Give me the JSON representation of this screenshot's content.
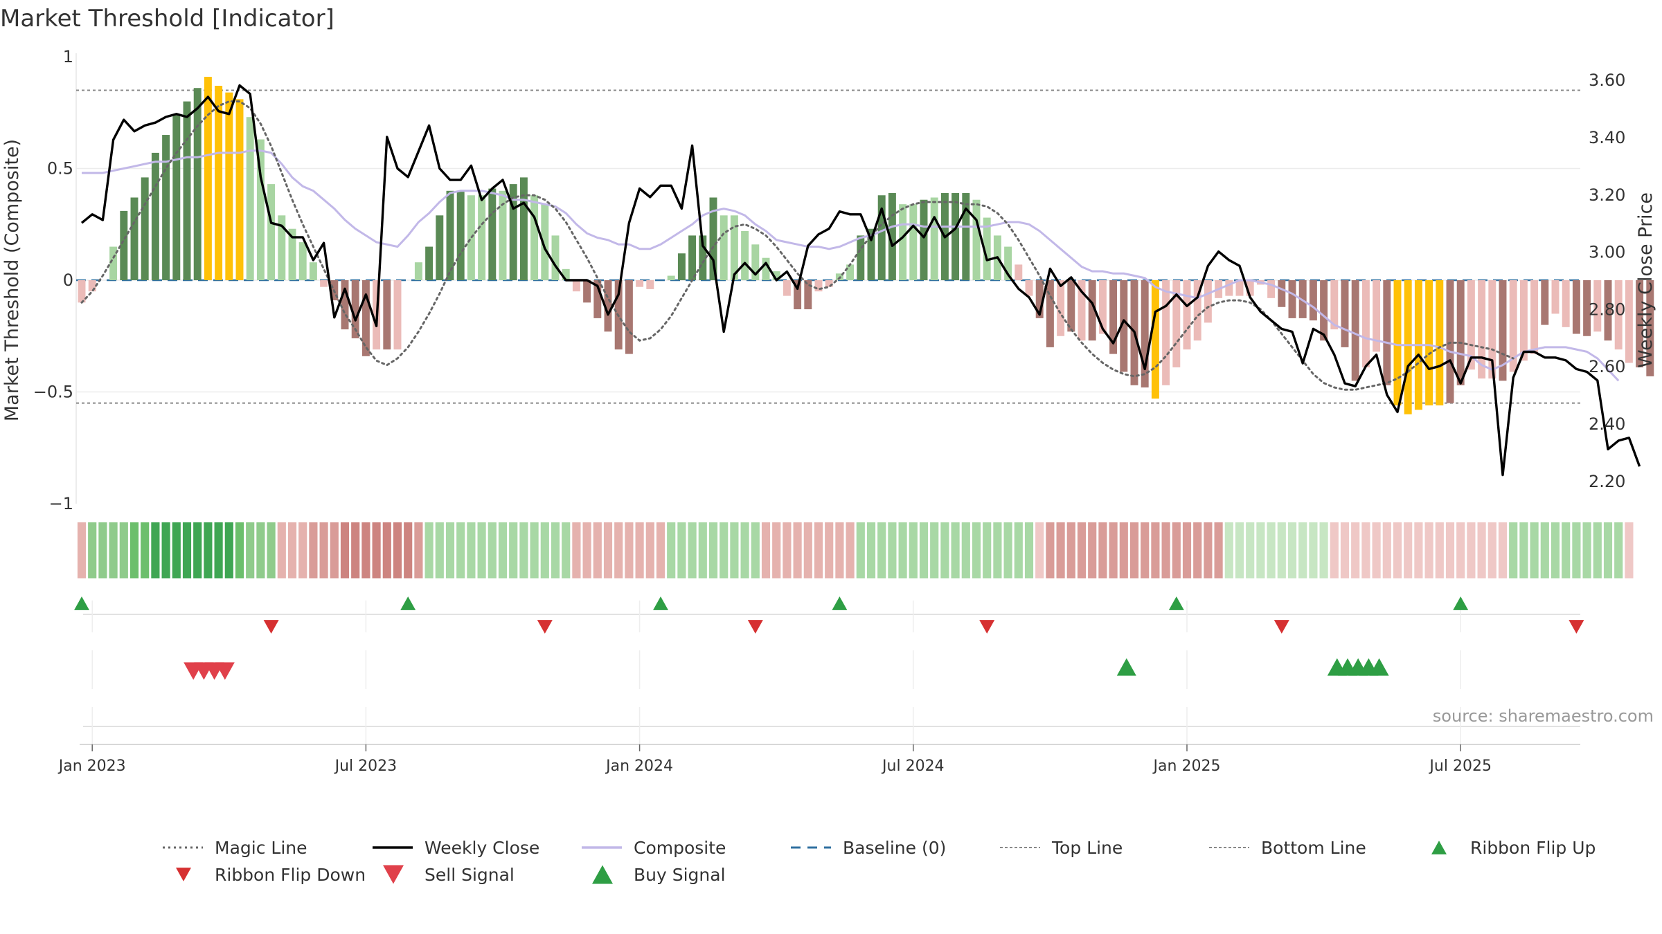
{
  "title": "Market Threshold [Indicator]",
  "source": "source: sharemaestro.com",
  "chart_data": {
    "type": "bar",
    "ylabel_left": "Market Threshold (Composite)",
    "ylabel_right": "Weekly Close Price",
    "ylim_left": [
      -1,
      1
    ],
    "ylim_right": [
      2.12,
      3.68
    ],
    "left_ticks": [
      {
        "v": 1,
        "label": "1"
      },
      {
        "v": 0.5,
        "label": "0.5"
      },
      {
        "v": 0,
        "label": "0"
      },
      {
        "v": -0.5,
        "label": "−0.5"
      },
      {
        "v": -1,
        "label": "−1"
      }
    ],
    "right_ticks": [
      {
        "v": 3.6,
        "label": "3.60"
      },
      {
        "v": 3.4,
        "label": "3.40"
      },
      {
        "v": 3.2,
        "label": "3.20"
      },
      {
        "v": 3.0,
        "label": "3.00"
      },
      {
        "v": 2.8,
        "label": "2.80"
      },
      {
        "v": 2.6,
        "label": "2.60"
      },
      {
        "v": 2.4,
        "label": "2.40"
      },
      {
        "v": 2.2,
        "label": "2.20"
      }
    ],
    "x_ticks": [
      {
        "week": 1,
        "label": "Jan 2023"
      },
      {
        "week": 27,
        "label": "Jul 2023"
      },
      {
        "week": 53,
        "label": "Jan 2024"
      },
      {
        "week": 79,
        "label": "Jul 2024"
      },
      {
        "week": 105,
        "label": "Jan 2025"
      },
      {
        "week": 131,
        "label": "Jul 2025"
      }
    ],
    "top_line": 0.85,
    "bottom_line": -0.55,
    "baseline": 0,
    "bars": [
      -0.1,
      -0.05,
      0,
      0.15,
      0.31,
      0.37,
      0.46,
      0.57,
      0.65,
      0.74,
      0.8,
      0.86,
      0.91,
      0.87,
      0.84,
      0.81,
      0.73,
      0.63,
      0.43,
      0.29,
      0.23,
      0.17,
      0.08,
      -0.03,
      -0.09,
      -0.22,
      -0.26,
      -0.34,
      -0.31,
      -0.31,
      -0.31,
      0,
      0.08,
      0.15,
      0.29,
      0.4,
      0.4,
      0.38,
      0.38,
      0.41,
      0.4,
      0.43,
      0.46,
      0.38,
      0.34,
      0.2,
      0.05,
      -0.05,
      -0.1,
      -0.17,
      -0.23,
      -0.31,
      -0.33,
      -0.03,
      -0.04,
      0,
      0.02,
      0.12,
      0.2,
      0.2,
      0.37,
      0.29,
      0.29,
      0.22,
      0.16,
      0.1,
      0.04,
      -0.07,
      -0.13,
      -0.13,
      -0.05,
      -0.03,
      0.03,
      0.07,
      0.2,
      0.23,
      0.38,
      0.39,
      0.34,
      0.34,
      0.36,
      0.37,
      0.39,
      0.39,
      0.39,
      0.36,
      0.28,
      0.2,
      0.15,
      0.07,
      -0.07,
      -0.17,
      -0.3,
      -0.25,
      -0.23,
      -0.27,
      -0.27,
      -0.24,
      -0.33,
      -0.41,
      -0.47,
      -0.48,
      -0.53,
      -0.47,
      -0.39,
      -0.31,
      -0.27,
      -0.19,
      -0.08,
      -0.07,
      -0.07,
      -0.07,
      -0.02,
      -0.08,
      -0.12,
      -0.17,
      -0.17,
      -0.18,
      -0.27,
      -0.22,
      -0.3,
      -0.45,
      -0.39,
      -0.32,
      -0.47,
      -0.56,
      -0.6,
      -0.58,
      -0.56,
      -0.56,
      -0.55,
      -0.47,
      -0.4,
      -0.44,
      -0.44,
      -0.45,
      -0.41,
      -0.36,
      -0.33,
      -0.2,
      -0.15,
      -0.21,
      -0.24,
      -0.25,
      -0.23,
      -0.27,
      -0.31,
      -0.37,
      -0.39,
      -0.43
    ],
    "bar_categories": [
      "pink",
      "pink",
      "pink",
      "lightgreen",
      "darkgreen",
      "darkgreen",
      "darkgreen",
      "darkgreen",
      "darkgreen",
      "darkgreen",
      "darkgreen",
      "darkgreen",
      "gold",
      "gold",
      "gold",
      "gold",
      "lightgreen",
      "lightgreen",
      "lightgreen",
      "lightgreen",
      "lightgreen",
      "lightgreen",
      "lightgreen",
      "pink",
      "darkred",
      "darkred",
      "darkred",
      "darkred",
      "pink",
      "darkred",
      "pink",
      "pink",
      "lightgreen",
      "darkgreen",
      "darkgreen",
      "darkgreen",
      "darkgreen",
      "lightgreen",
      "lightgreen",
      "darkgreen",
      "lightgreen",
      "darkgreen",
      "darkgreen",
      "lightgreen",
      "lightgreen",
      "lightgreen",
      "lightgreen",
      "pink",
      "darkred",
      "darkred",
      "darkred",
      "darkred",
      "darkred",
      "pink",
      "pink",
      "pink",
      "lightgreen",
      "darkgreen",
      "darkgreen",
      "darkgreen",
      "darkgreen",
      "lightgreen",
      "lightgreen",
      "lightgreen",
      "lightgreen",
      "lightgreen",
      "lightgreen",
      "pink",
      "darkred",
      "darkred",
      "pink",
      "pink",
      "lightgreen",
      "lightgreen",
      "darkgreen",
      "darkgreen",
      "darkgreen",
      "darkgreen",
      "lightgreen",
      "lightgreen",
      "darkgreen",
      "lightgreen",
      "darkgreen",
      "darkgreen",
      "darkgreen",
      "lightgreen",
      "lightgreen",
      "lightgreen",
      "lightgreen",
      "pink",
      "pink",
      "darkred",
      "darkred",
      "pink",
      "darkred",
      "pink",
      "darkred",
      "pink",
      "darkred",
      "darkred",
      "darkred",
      "darkred",
      "gold",
      "pink",
      "pink",
      "pink",
      "pink",
      "pink",
      "pink",
      "pink",
      "pink",
      "pink",
      "pink",
      "pink",
      "darkred",
      "darkred",
      "darkred",
      "darkred",
      "darkred",
      "pink",
      "darkred",
      "darkred",
      "pink",
      "pink",
      "darkred",
      "gold",
      "gold",
      "gold",
      "gold",
      "gold",
      "darkred",
      "darkred",
      "pink",
      "pink",
      "pink",
      "darkred",
      "pink",
      "pink",
      "pink",
      "darkred",
      "pink",
      "pink",
      "darkred",
      "darkred",
      "pink",
      "darkred",
      "pink",
      "pink",
      "darkred",
      "darkred"
    ],
    "magic_line": [
      -0.1,
      -0.05,
      0.02,
      0.1,
      0.18,
      0.26,
      0.34,
      0.42,
      0.5,
      0.57,
      0.63,
      0.69,
      0.74,
      0.78,
      0.8,
      0.8,
      0.77,
      0.7,
      0.6,
      0.48,
      0.36,
      0.25,
      0.15,
      0.05,
      -0.05,
      -0.15,
      -0.22,
      -0.3,
      -0.36,
      -0.38,
      -0.35,
      -0.3,
      -0.23,
      -0.15,
      -0.06,
      0.04,
      0.12,
      0.19,
      0.25,
      0.3,
      0.34,
      0.37,
      0.38,
      0.38,
      0.36,
      0.32,
      0.26,
      0.18,
      0.1,
      0.01,
      -0.08,
      -0.16,
      -0.23,
      -0.27,
      -0.26,
      -0.22,
      -0.16,
      -0.08,
      0,
      0.08,
      0.15,
      0.21,
      0.24,
      0.25,
      0.23,
      0.2,
      0.15,
      0.09,
      0.03,
      -0.02,
      -0.04,
      -0.03,
      0.01,
      0.07,
      0.14,
      0.2,
      0.25,
      0.29,
      0.32,
      0.34,
      0.35,
      0.35,
      0.35,
      0.35,
      0.34,
      0.34,
      0.33,
      0.3,
      0.25,
      0.18,
      0.1,
      0.02,
      -0.07,
      -0.15,
      -0.22,
      -0.28,
      -0.33,
      -0.37,
      -0.4,
      -0.42,
      -0.43,
      -0.42,
      -0.39,
      -0.34,
      -0.28,
      -0.22,
      -0.16,
      -0.12,
      -0.1,
      -0.09,
      -0.09,
      -0.1,
      -0.13,
      -0.18,
      -0.24,
      -0.3,
      -0.36,
      -0.42,
      -0.46,
      -0.48,
      -0.49,
      -0.49,
      -0.48,
      -0.47,
      -0.46,
      -0.44,
      -0.41,
      -0.37,
      -0.33,
      -0.3,
      -0.28,
      -0.28,
      -0.29,
      -0.3,
      -0.31,
      -0.33,
      -0.35
    ],
    "composite": [
      0.48,
      0.48,
      0.48,
      0.49,
      0.5,
      0.51,
      0.52,
      0.53,
      0.53,
      0.54,
      0.55,
      0.55,
      0.56,
      0.57,
      0.57,
      0.57,
      0.58,
      0.58,
      0.57,
      0.52,
      0.46,
      0.42,
      0.4,
      0.36,
      0.32,
      0.27,
      0.23,
      0.2,
      0.17,
      0.16,
      0.15,
      0.2,
      0.26,
      0.3,
      0.35,
      0.39,
      0.4,
      0.4,
      0.4,
      0.39,
      0.38,
      0.36,
      0.36,
      0.35,
      0.34,
      0.33,
      0.3,
      0.25,
      0.21,
      0.19,
      0.18,
      0.16,
      0.16,
      0.14,
      0.14,
      0.16,
      0.19,
      0.22,
      0.25,
      0.29,
      0.31,
      0.32,
      0.31,
      0.29,
      0.25,
      0.22,
      0.18,
      0.17,
      0.16,
      0.15,
      0.15,
      0.14,
      0.15,
      0.17,
      0.19,
      0.2,
      0.22,
      0.24,
      0.25,
      0.25,
      0.24,
      0.24,
      0.24,
      0.24,
      0.24,
      0.24,
      0.24,
      0.25,
      0.26,
      0.26,
      0.25,
      0.22,
      0.18,
      0.14,
      0.1,
      0.06,
      0.04,
      0.04,
      0.03,
      0.03,
      0.02,
      0.01,
      -0.03,
      -0.05,
      -0.06,
      -0.07,
      -0.08,
      -0.06,
      -0.04,
      -0.02,
      0,
      0,
      -0.01,
      -0.02,
      -0.04,
      -0.06,
      -0.09,
      -0.12,
      -0.16,
      -0.2,
      -0.22,
      -0.24,
      -0.26,
      -0.27,
      -0.28,
      -0.29,
      -0.29,
      -0.29,
      -0.29,
      -0.3,
      -0.32,
      -0.33,
      -0.34,
      -0.38,
      -0.4,
      -0.38,
      -0.35,
      -0.32,
      -0.31,
      -0.3,
      -0.3,
      -0.3,
      -0.31,
      -0.32,
      -0.35,
      -0.4,
      -0.45
    ],
    "weekly_close": [
      3.1,
      3.13,
      3.11,
      3.39,
      3.46,
      3.42,
      3.44,
      3.45,
      3.47,
      3.48,
      3.47,
      3.5,
      3.54,
      3.49,
      3.48,
      3.58,
      3.55,
      3.26,
      3.1,
      3.09,
      3.05,
      3.05,
      2.97,
      3.03,
      2.77,
      2.87,
      2.76,
      2.85,
      2.74,
      3.4,
      3.29,
      3.26,
      3.35,
      3.44,
      3.29,
      3.25,
      3.25,
      3.3,
      3.18,
      3.22,
      3.25,
      3.15,
      3.17,
      3.12,
      3.01,
      2.95,
      2.9,
      2.9,
      2.9,
      2.88,
      2.78,
      2.85,
      3.1,
      3.22,
      3.19,
      3.23,
      3.23,
      3.15,
      3.37,
      3.02,
      2.97,
      2.72,
      2.92,
      2.96,
      2.92,
      2.96,
      2.9,
      2.93,
      2.87,
      3.02,
      3.06,
      3.08,
      3.14,
      3.13,
      3.13,
      3.04,
      3.15,
      3.02,
      3.05,
      3.09,
      3.05,
      3.12,
      3.05,
      3.08,
      3.15,
      3.11,
      2.97,
      2.98,
      2.92,
      2.87,
      2.84,
      2.78,
      2.94,
      2.88,
      2.91,
      2.86,
      2.82,
      2.73,
      2.68,
      2.76,
      2.72,
      2.59,
      2.79,
      2.81,
      2.85,
      2.81,
      2.84,
      2.95,
      3.0,
      2.97,
      2.95,
      2.84,
      2.79,
      2.76,
      2.73,
      2.72,
      2.61,
      2.73,
      2.71,
      2.64,
      2.54,
      2.53,
      2.6,
      2.64,
      2.5,
      2.44,
      2.6,
      2.64,
      2.59,
      2.6,
      2.62,
      2.54,
      2.63,
      2.63,
      2.62,
      2.22,
      2.56,
      2.65,
      2.65,
      2.63,
      2.63,
      2.62,
      2.59,
      2.58,
      2.55,
      2.31,
      2.34,
      2.35,
      2.25
    ],
    "ribbon": [
      "r1",
      "g2",
      "g2",
      "g2",
      "g2",
      "g3",
      "g3",
      "g4",
      "g4",
      "g4",
      "g4",
      "g4",
      "g4",
      "g4",
      "g4",
      "g3",
      "g2",
      "g2",
      "g2",
      "r1",
      "r1",
      "r1",
      "r2",
      "r2",
      "r2",
      "r3",
      "r3",
      "r3",
      "r3",
      "r3",
      "r3",
      "r3",
      "r2",
      "g1",
      "g1",
      "g1",
      "g1",
      "g1",
      "g1",
      "g1",
      "g1",
      "g1",
      "g1",
      "g1",
      "g1",
      "g1",
      "g1",
      "r1",
      "r1",
      "r1",
      "r1",
      "r1",
      "r1",
      "r1",
      "r1",
      "r1",
      "g1",
      "g1",
      "g1",
      "g1",
      "g1",
      "g1",
      "g1",
      "g1",
      "g1",
      "r1",
      "r1",
      "r1",
      "r1",
      "r1",
      "r1",
      "r1",
      "r1",
      "r1",
      "g1",
      "g1",
      "g1",
      "g1",
      "g1",
      "g1",
      "g1",
      "g1",
      "g1",
      "g1",
      "g1",
      "g1",
      "g1",
      "g1",
      "g1",
      "g1",
      "g1",
      "r0",
      "r2",
      "r2",
      "r2",
      "r2",
      "r2",
      "r2",
      "r2",
      "r2",
      "r2",
      "r2",
      "r2",
      "r2",
      "r2",
      "r2",
      "r2",
      "r2",
      "r2",
      "g0",
      "g0",
      "g0",
      "g0",
      "g0",
      "g0",
      "g0",
      "g0",
      "g0",
      "g0",
      "r0",
      "r0",
      "r0",
      "r0",
      "r0",
      "r0",
      "r0",
      "r0",
      "r0",
      "r0",
      "r0",
      "r0",
      "r0",
      "r0",
      "r0",
      "r0",
      "r0",
      "g1",
      "g1",
      "g1",
      "g1",
      "g1",
      "g1",
      "g1",
      "g1",
      "g1",
      "g1",
      "g1",
      "r0"
    ],
    "ribbon_flip_up_weeks": [
      0,
      31,
      55,
      72,
      104,
      131
    ],
    "ribbon_flip_down_weeks": [
      18,
      44,
      64,
      86,
      114,
      142
    ],
    "sell_signal_weeks": [
      11,
      12,
      13,
      14
    ],
    "buy_signal_weeks": [
      99,
      119,
      120,
      121,
      122,
      123
    ],
    "colors": {
      "darkgreen": "#5a8a55",
      "lightgreen": "#a8d5a2",
      "gold": "#ffc107",
      "pink": "#ebbbb8",
      "darkred": "#a87771",
      "magic": "#666666",
      "close": "#000000",
      "composite": "#c2b8e8",
      "baseline": "#3070a0",
      "flipup": "#2e9e44",
      "flipdown": "#d63031",
      "sell": "#e0404a",
      "buy": "#2e9e44"
    },
    "legend": [
      {
        "label": "Magic Line",
        "kind": "dotted",
        "color": "#666666"
      },
      {
        "label": "Weekly Close",
        "kind": "solid",
        "color": "#000000"
      },
      {
        "label": "Composite",
        "kind": "solid",
        "color": "#c2b8e8"
      },
      {
        "label": "Baseline (0)",
        "kind": "dashed",
        "color": "#3070a0"
      },
      {
        "label": "Top Line",
        "kind": "fine",
        "color": "#888888"
      },
      {
        "label": "Bottom Line",
        "kind": "fine",
        "color": "#888888"
      },
      {
        "label": "Ribbon Flip Up",
        "kind": "tri-up-small",
        "color": "#2e9e44"
      },
      {
        "label": "Ribbon Flip Down",
        "kind": "tri-down-small",
        "color": "#d63031"
      },
      {
        "label": "Sell Signal",
        "kind": "tri-down",
        "color": "#e0404a"
      },
      {
        "label": "Buy Signal",
        "kind": "tri-up",
        "color": "#2e9e44"
      }
    ]
  }
}
